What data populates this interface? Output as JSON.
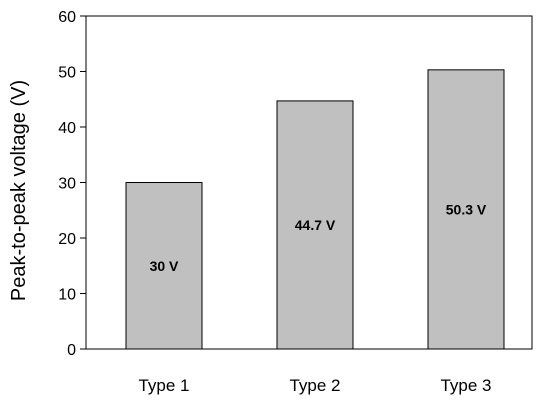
{
  "chart_data": {
    "type": "bar",
    "categories": [
      "Type 1",
      "Type 2",
      "Type 3"
    ],
    "values": [
      30,
      44.7,
      50.3
    ],
    "data_labels": [
      "30 V",
      "44.7 V",
      "50.3 V"
    ],
    "title": "",
    "xlabel": "",
    "ylabel": "Peak-to-peak voltage (V)",
    "ylim": [
      0,
      60
    ],
    "yticks": [
      0,
      10,
      20,
      30,
      40,
      50,
      60
    ],
    "grid": false,
    "legend": "none",
    "bar_color": "#c0c0c0",
    "bar_edge_color": "#000000"
  }
}
